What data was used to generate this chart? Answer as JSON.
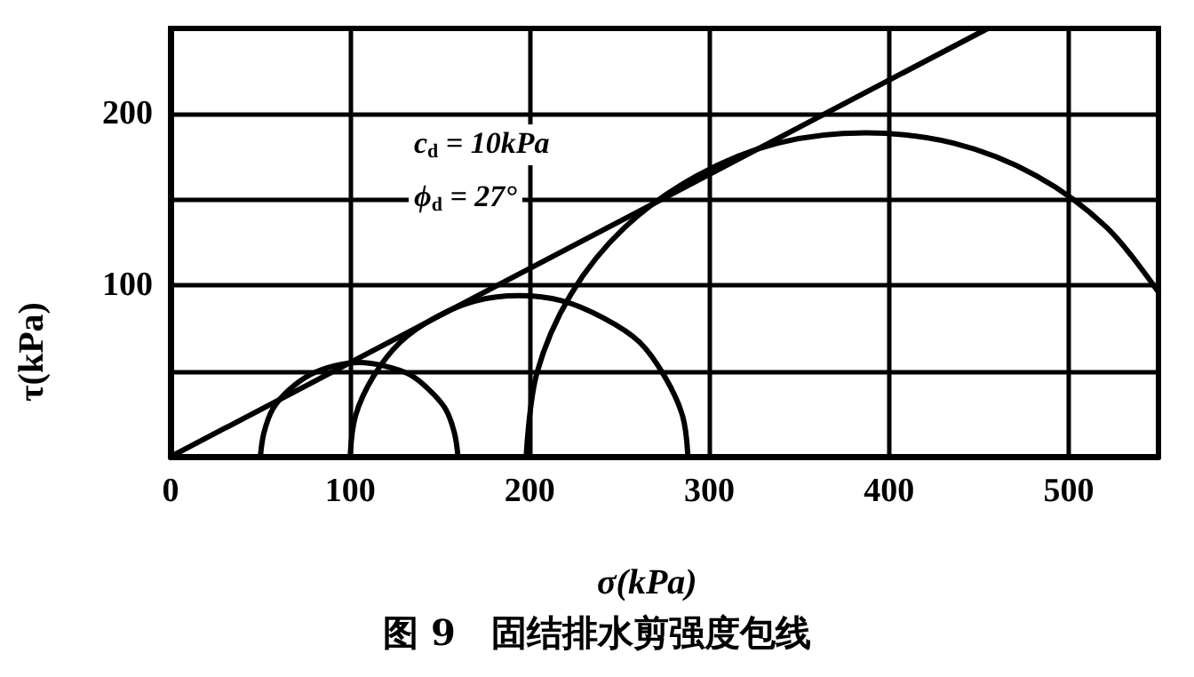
{
  "chart_data": {
    "type": "line",
    "title": "图 9　固结排水剪强度包线",
    "xlabel": "σ(kPa)",
    "ylabel": "τ(kPa)",
    "annotations": [
      "c$_{d}$ = 10kPa",
      "ϕ$_{d}$ = 27°"
    ],
    "xlim": [
      0,
      550
    ],
    "xticks": [
      0,
      100,
      200,
      300,
      400,
      500
    ],
    "ylim": [
      0,
      250
    ],
    "yticks": [
      {
        "value": 50,
        "label": null
      },
      100,
      {
        "value": 150,
        "label": null
      },
      200
    ],
    "grid": true,
    "marker": "none",
    "line_style": "solid",
    "series": [
      {
        "color": "#000000",
        "x": [
          0,
          455
        ],
        "values": [
          0,
          250
        ]
      },
      {
        "color": "#000000",
        "x": [
          50,
          52,
          57,
          66,
          78,
          91,
          105,
          119,
          133,
          144,
          153,
          158,
          160
        ],
        "values": [
          0,
          14,
          28,
          39,
          48,
          53,
          55,
          53,
          48,
          39,
          28,
          14,
          0
        ]
      },
      {
        "color": "#000000",
        "x": [
          100,
          103,
          113,
          128,
          147,
          170,
          194,
          218,
          241,
          261,
          275,
          285,
          288
        ],
        "values": [
          0,
          24,
          47,
          67,
          81,
          91,
          94,
          91,
          81,
          67,
          47,
          24,
          0
        ]
      },
      {
        "color": "#000000",
        "x": [
          198,
          204,
          223,
          253,
          293,
          338,
          387,
          436,
          482,
          521,
          550
        ],
        "values": [
          0,
          49,
          95,
          134,
          164,
          183,
          189,
          183,
          164,
          134,
          96
        ]
      }
    ]
  }
}
